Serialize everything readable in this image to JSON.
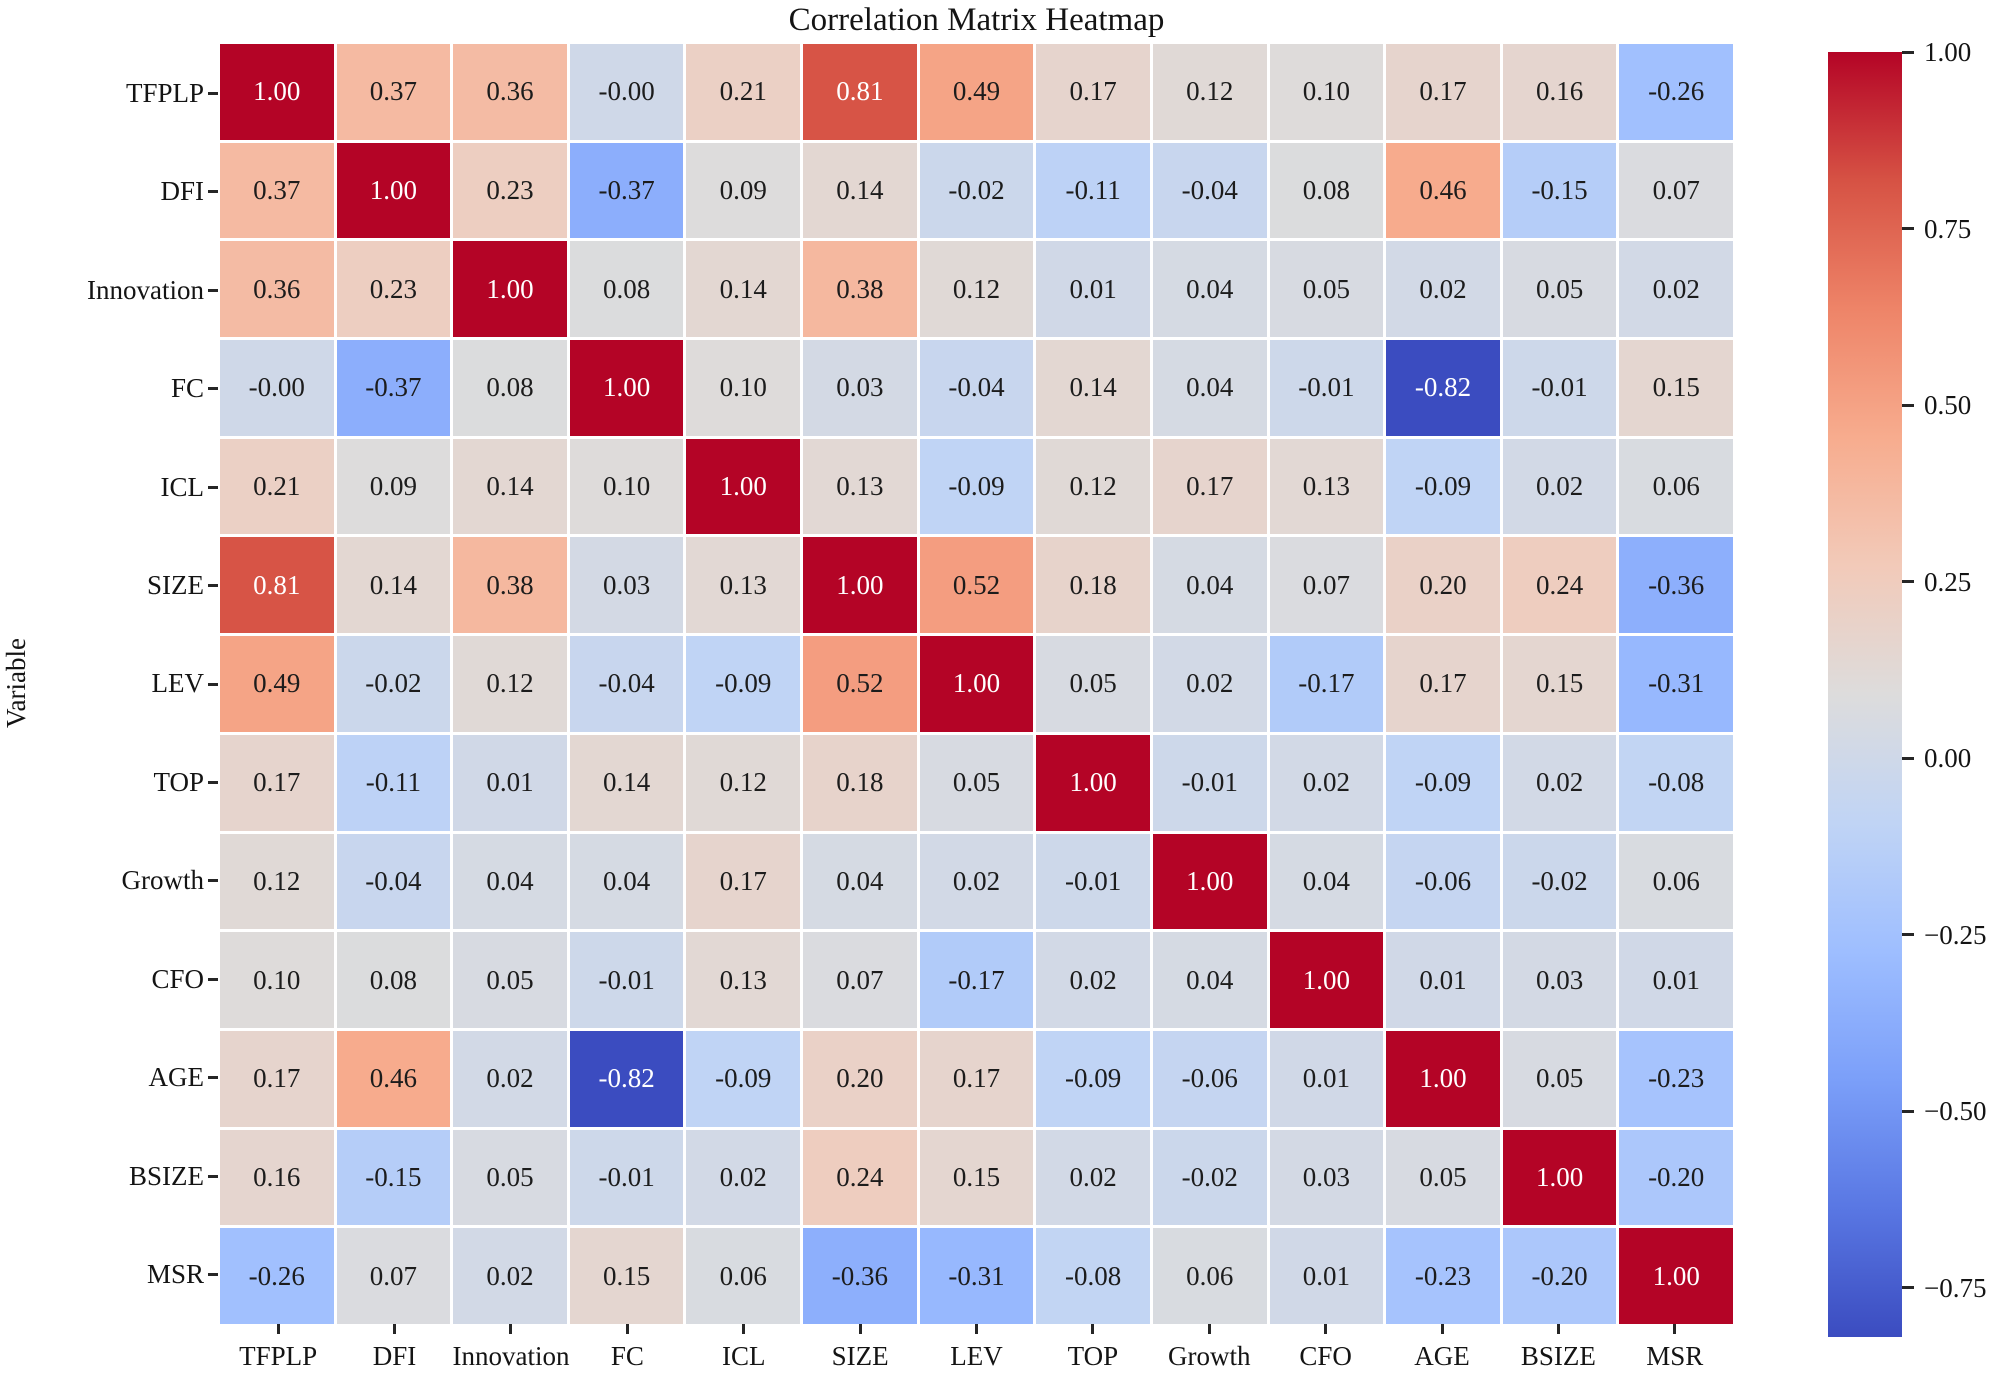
{
  "chart_data": {
    "type": "heatmap",
    "title": "Correlation Matrix Heatmap",
    "xlabel": "",
    "ylabel": "Variable",
    "variables": [
      "TFPLP",
      "DFI",
      "Innovation",
      "FC",
      "ICL",
      "SIZE",
      "LEV",
      "TOP",
      "Growth",
      "CFO",
      "AGE",
      "BSIZE",
      "MSR"
    ],
    "matrix": [
      [
        "1.00",
        "0.37",
        "0.36",
        "-0.00",
        "0.21",
        "0.81",
        "0.49",
        "0.17",
        "0.12",
        "0.10",
        "0.17",
        "0.16",
        "-0.26"
      ],
      [
        "0.37",
        "1.00",
        "0.23",
        "-0.37",
        "0.09",
        "0.14",
        "-0.02",
        "-0.11",
        "-0.04",
        "0.08",
        "0.46",
        "-0.15",
        "0.07"
      ],
      [
        "0.36",
        "0.23",
        "1.00",
        "0.08",
        "0.14",
        "0.38",
        "0.12",
        "0.01",
        "0.04",
        "0.05",
        "0.02",
        "0.05",
        "0.02"
      ],
      [
        "-0.00",
        "-0.37",
        "0.08",
        "1.00",
        "0.10",
        "0.03",
        "-0.04",
        "0.14",
        "0.04",
        "-0.01",
        "-0.82",
        "-0.01",
        "0.15"
      ],
      [
        "0.21",
        "0.09",
        "0.14",
        "0.10",
        "1.00",
        "0.13",
        "-0.09",
        "0.12",
        "0.17",
        "0.13",
        "-0.09",
        "0.02",
        "0.06"
      ],
      [
        "0.81",
        "0.14",
        "0.38",
        "0.03",
        "0.13",
        "1.00",
        "0.52",
        "0.18",
        "0.04",
        "0.07",
        "0.20",
        "0.24",
        "-0.36"
      ],
      [
        "0.49",
        "-0.02",
        "0.12",
        "-0.04",
        "-0.09",
        "0.52",
        "1.00",
        "0.05",
        "0.02",
        "-0.17",
        "0.17",
        "0.15",
        "-0.31"
      ],
      [
        "0.17",
        "-0.11",
        "0.01",
        "0.14",
        "0.12",
        "0.18",
        "0.05",
        "1.00",
        "-0.01",
        "0.02",
        "-0.09",
        "0.02",
        "-0.08"
      ],
      [
        "0.12",
        "-0.04",
        "0.04",
        "0.04",
        "0.17",
        "0.04",
        "0.02",
        "-0.01",
        "1.00",
        "0.04",
        "-0.06",
        "-0.02",
        "0.06"
      ],
      [
        "0.10",
        "0.08",
        "0.05",
        "-0.01",
        "0.13",
        "0.07",
        "-0.17",
        "0.02",
        "0.04",
        "1.00",
        "0.01",
        "0.03",
        "0.01"
      ],
      [
        "0.17",
        "0.46",
        "0.02",
        "-0.82",
        "-0.09",
        "0.20",
        "0.17",
        "-0.09",
        "-0.06",
        "0.01",
        "1.00",
        "0.05",
        "-0.23"
      ],
      [
        "0.16",
        "-0.15",
        "0.05",
        "-0.01",
        "0.02",
        "0.24",
        "0.15",
        "0.02",
        "-0.02",
        "0.03",
        "0.05",
        "1.00",
        "-0.20"
      ],
      [
        "-0.26",
        "0.07",
        "0.02",
        "0.15",
        "0.06",
        "-0.36",
        "-0.31",
        "-0.08",
        "0.06",
        "0.01",
        "-0.23",
        "-0.20",
        "1.00"
      ]
    ],
    "colorbar": {
      "position": "right",
      "vmin": -0.82,
      "vmax": 1.0,
      "tick_labels": [
        "1.00",
        "0.75",
        "0.50",
        "0.25",
        "0.00",
        "−0.25",
        "−0.50",
        "−0.75"
      ],
      "tick_values": [
        1.0,
        0.75,
        0.5,
        0.25,
        0.0,
        -0.25,
        -0.5,
        -0.75
      ]
    },
    "colormap": {
      "name": "coolwarm",
      "stops": [
        "#3B4CC0",
        "#5977E3",
        "#7B9FF9",
        "#9EBEFF",
        "#C0D4F5",
        "#DDDCDC",
        "#F2CAB9",
        "#F7AC8E",
        "#EE8468",
        "#D65244",
        "#B40426"
      ]
    },
    "grid": "off",
    "cell_line_color": "#FFFFFF",
    "annotation_color_dark": "#1C1C1C",
    "annotation_color_light": "#FFFFFF"
  }
}
